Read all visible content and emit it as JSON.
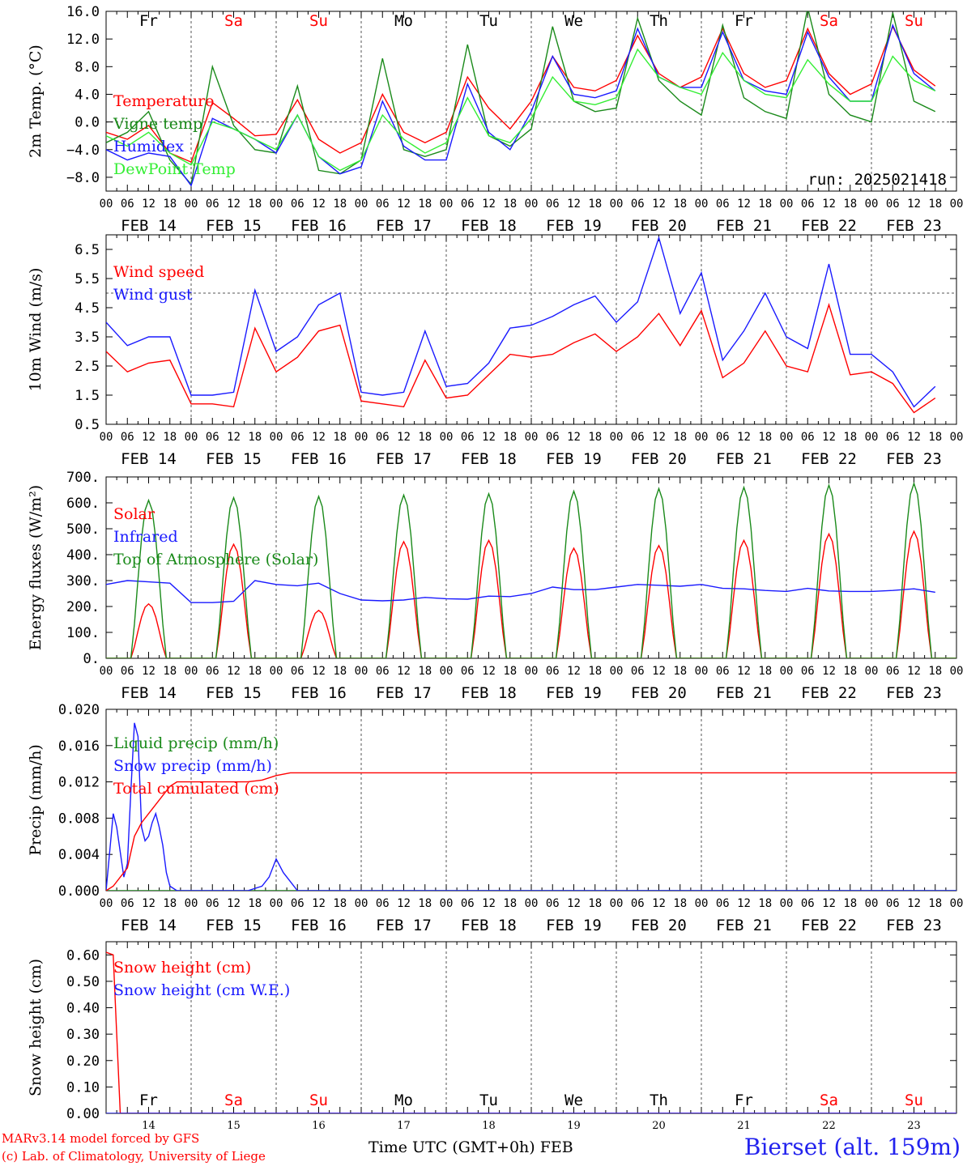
{
  "footer": {
    "model_credit": "MARv3.14 model forced by GFS",
    "lab_credit": "(c) Lab. of Climatology, University of Liege",
    "time_axis_label": "Time UTC (GMT+0h)",
    "month": "FEB",
    "station": "Bierset (alt. 159m)"
  },
  "colors": {
    "red": "#ff0000",
    "blue": "#1a1aff",
    "green": "#1a8a1a",
    "light_green": "#33ee33",
    "weekend": "#ff0000",
    "weekday": "#000000"
  },
  "days": {
    "weekday_names": [
      "Fr",
      "Sa",
      "Su",
      "Mo",
      "Tu",
      "We",
      "Th",
      "Fr",
      "Sa",
      "Su"
    ],
    "weekend_flags": [
      false,
      true,
      true,
      false,
      false,
      false,
      false,
      false,
      true,
      true
    ],
    "date_labels": [
      "FEB 14",
      "FEB 15",
      "FEB 16",
      "FEB 17",
      "FEB 18",
      "FEB 19",
      "FEB 20",
      "FEB 21",
      "FEB 22",
      "FEB 23"
    ],
    "day_numbers": [
      "14",
      "15",
      "16",
      "17",
      "18",
      "19",
      "20",
      "21",
      "22",
      "23"
    ],
    "hour_ticks": [
      "00",
      "06",
      "12",
      "18"
    ]
  },
  "chart_data": [
    {
      "id": "temp",
      "type": "line",
      "ylabel": "2m Temp. (°C)",
      "ylim": [
        -10,
        16
      ],
      "yticks": [
        -8.0,
        -4.0,
        0.0,
        4.0,
        8.0,
        12.0,
        16.0
      ],
      "ytick_labels": [
        "−8.0",
        "−4.0",
        "0.0",
        "4.0",
        "8.0",
        "12.0",
        "16.0"
      ],
      "ref_line": 0,
      "annotation": "run: 2025021418",
      "x_unit": "hours since FEB 14 00 UTC",
      "series": [
        {
          "name": "Temperature",
          "color": "red",
          "x": [
            0,
            6,
            12,
            18,
            24,
            30,
            36,
            42,
            48,
            54,
            60,
            66,
            72,
            78,
            84,
            90,
            96,
            102,
            108,
            114,
            120,
            126,
            132,
            138,
            144,
            150,
            156,
            162,
            168,
            174,
            180,
            186,
            192,
            198,
            204,
            210,
            216,
            222,
            228,
            234
          ],
          "values": [
            -1.5,
            -2.5,
            -0.5,
            -4.5,
            -5.8,
            2.8,
            0.5,
            -2.0,
            -1.8,
            3.2,
            -2.5,
            -4.5,
            -3.0,
            4.0,
            -1.5,
            -3.0,
            -1.5,
            6.5,
            2.0,
            -1.0,
            3.0,
            9.5,
            5.0,
            4.5,
            6.0,
            12.5,
            7.0,
            5.0,
            6.5,
            13.5,
            7.0,
            5.0,
            6.0,
            13.5,
            7.0,
            4.0,
            5.5,
            13.8,
            7.5,
            5.2
          ]
        },
        {
          "name": "Vigne temp",
          "color": "green",
          "x": [
            0,
            6,
            12,
            18,
            24,
            30,
            36,
            42,
            48,
            54,
            60,
            66,
            72,
            78,
            84,
            90,
            96,
            102,
            108,
            114,
            120,
            126,
            132,
            138,
            144,
            150,
            156,
            162,
            168,
            174,
            180,
            186,
            192,
            198,
            204,
            210,
            216,
            222,
            228,
            234
          ],
          "values": [
            -3.0,
            -1.5,
            1.5,
            -5.5,
            -9.0,
            8.0,
            -0.5,
            -4.0,
            -4.5,
            5.2,
            -7.0,
            -7.5,
            -5.5,
            9.2,
            -4.0,
            -5.0,
            -4.0,
            11.2,
            -2.0,
            -3.5,
            -1.0,
            13.8,
            3.0,
            1.5,
            2.0,
            15.0,
            6.0,
            3.0,
            1.0,
            14.0,
            3.5,
            1.5,
            0.5,
            16.5,
            4.0,
            1.0,
            0.0,
            15.8,
            3.0,
            1.5
          ]
        },
        {
          "name": "Humidex",
          "color": "blue",
          "x": [
            0,
            6,
            12,
            18,
            24,
            30,
            36,
            42,
            48,
            54,
            60,
            66,
            72,
            78,
            84,
            90,
            96,
            102,
            108,
            114,
            120,
            126,
            132,
            138,
            144,
            150,
            156,
            162,
            168,
            174,
            180,
            186,
            192,
            198,
            204,
            210,
            216,
            222,
            228,
            234
          ],
          "values": [
            -4.0,
            -5.5,
            -4.5,
            -5.0,
            -9.2,
            0.5,
            -1.0,
            -2.5,
            -4.5,
            1.0,
            -5.0,
            -7.5,
            -6.5,
            3.0,
            -3.5,
            -5.5,
            -5.5,
            5.5,
            -1.5,
            -4.0,
            1.5,
            9.5,
            4.0,
            3.5,
            4.5,
            13.5,
            6.5,
            5.0,
            5.0,
            13.0,
            6.0,
            4.5,
            4.0,
            13.0,
            6.5,
            3.0,
            3.0,
            14.0,
            7.0,
            4.5
          ]
        },
        {
          "name": "DewPoint Temp",
          "color": "light_green",
          "x": [
            0,
            6,
            12,
            18,
            24,
            30,
            36,
            42,
            48,
            54,
            60,
            66,
            72,
            78,
            84,
            90,
            96,
            102,
            108,
            114,
            120,
            126,
            132,
            138,
            144,
            150,
            156,
            162,
            168,
            174,
            180,
            186,
            192,
            198,
            204,
            210,
            216,
            222,
            228,
            234
          ],
          "values": [
            -2.0,
            -3.5,
            -1.5,
            -4.5,
            -6.2,
            0.0,
            -1.0,
            -2.5,
            -4.0,
            1.0,
            -5.0,
            -7.0,
            -5.5,
            1.0,
            -2.5,
            -4.5,
            -3.0,
            3.5,
            -2.0,
            -3.0,
            0.5,
            6.5,
            3.0,
            2.5,
            3.5,
            10.5,
            6.5,
            5.0,
            4.0,
            10.0,
            6.0,
            4.0,
            3.5,
            9.0,
            5.5,
            3.0,
            3.0,
            9.5,
            6.0,
            4.5
          ]
        }
      ]
    },
    {
      "id": "wind",
      "type": "line",
      "ylabel": "10m Wind (m/s)",
      "ylim": [
        0.5,
        7.0
      ],
      "yticks": [
        0.5,
        1.5,
        2.5,
        3.5,
        4.5,
        5.5,
        6.5
      ],
      "ytick_labels": [
        "0.5",
        "1.5",
        "2.5",
        "3.5",
        "4.5",
        "5.5",
        "6.5"
      ],
      "ref_line": 5.0,
      "x_unit": "hours since FEB 14 00 UTC",
      "series": [
        {
          "name": "Wind speed",
          "color": "red",
          "x": [
            0,
            6,
            12,
            18,
            24,
            30,
            36,
            42,
            48,
            54,
            60,
            66,
            72,
            78,
            84,
            90,
            96,
            102,
            108,
            114,
            120,
            126,
            132,
            138,
            144,
            150,
            156,
            162,
            168,
            174,
            180,
            186,
            192,
            198,
            204,
            210,
            216,
            222,
            228,
            234
          ],
          "values": [
            3.0,
            2.3,
            2.6,
            2.7,
            1.2,
            1.2,
            1.1,
            3.8,
            2.3,
            2.8,
            3.7,
            3.9,
            1.3,
            1.2,
            1.1,
            2.7,
            1.4,
            1.5,
            2.2,
            2.9,
            2.8,
            2.9,
            3.3,
            3.6,
            3.0,
            3.5,
            4.3,
            3.2,
            4.4,
            2.1,
            2.6,
            3.7,
            2.5,
            2.3,
            4.6,
            2.2,
            2.3,
            1.9,
            0.9,
            1.4
          ]
        },
        {
          "name": "Wind gust",
          "color": "blue",
          "x": [
            0,
            6,
            12,
            18,
            24,
            30,
            36,
            42,
            48,
            54,
            60,
            66,
            72,
            78,
            84,
            90,
            96,
            102,
            108,
            114,
            120,
            126,
            132,
            138,
            144,
            150,
            156,
            162,
            168,
            174,
            180,
            186,
            192,
            198,
            204,
            210,
            216,
            222,
            228,
            234
          ],
          "values": [
            4.0,
            3.2,
            3.5,
            3.5,
            1.5,
            1.5,
            1.6,
            5.1,
            3.0,
            3.5,
            4.6,
            5.0,
            1.6,
            1.5,
            1.6,
            3.7,
            1.8,
            1.9,
            2.6,
            3.8,
            3.9,
            4.2,
            4.6,
            4.9,
            4.0,
            4.7,
            6.9,
            4.3,
            5.7,
            2.7,
            3.7,
            5.0,
            3.5,
            3.1,
            6.0,
            2.9,
            2.9,
            2.3,
            1.1,
            1.8
          ]
        }
      ]
    },
    {
      "id": "energy",
      "type": "line",
      "ylabel": "Energy fluxes (W/m²)",
      "ylim": [
        0,
        700
      ],
      "yticks": [
        0,
        100,
        200,
        300,
        400,
        500,
        600,
        700
      ],
      "ytick_labels": [
        "0.",
        "100.",
        "200.",
        "300.",
        "400.",
        "500.",
        "600.",
        "700."
      ],
      "x_unit": "hours since FEB 14 00 UTC",
      "series": [
        {
          "name": "Solar",
          "color": "red",
          "daily_peaks": [
            210,
            440,
            185,
            450,
            455,
            425,
            435,
            455,
            480,
            490
          ],
          "x": [
            0,
            6,
            12,
            18,
            24,
            30,
            36,
            42,
            48,
            54,
            60,
            66,
            72,
            78,
            84,
            90,
            96,
            102,
            108,
            114,
            120,
            126,
            132,
            138,
            144,
            150,
            156,
            162,
            168,
            174,
            180,
            186,
            192,
            198,
            204,
            210,
            216,
            222,
            228,
            234
          ],
          "values": [
            0,
            0,
            210,
            0,
            0,
            0,
            440,
            0,
            0,
            0,
            185,
            0,
            0,
            0,
            450,
            0,
            0,
            0,
            455,
            0,
            0,
            0,
            425,
            0,
            0,
            0,
            435,
            0,
            0,
            0,
            455,
            0,
            0,
            0,
            480,
            0,
            0,
            0,
            490,
            0
          ]
        },
        {
          "name": "Infrared",
          "color": "blue",
          "x": [
            0,
            6,
            12,
            18,
            24,
            30,
            36,
            42,
            48,
            54,
            60,
            66,
            72,
            78,
            84,
            90,
            96,
            102,
            108,
            114,
            120,
            126,
            132,
            138,
            144,
            150,
            156,
            162,
            168,
            174,
            180,
            186,
            192,
            198,
            204,
            210,
            216,
            222,
            228,
            234
          ],
          "values": [
            285,
            300,
            295,
            290,
            215,
            215,
            220,
            300,
            285,
            280,
            290,
            250,
            225,
            222,
            225,
            235,
            230,
            228,
            240,
            238,
            250,
            275,
            265,
            265,
            275,
            285,
            282,
            278,
            285,
            270,
            268,
            262,
            258,
            270,
            260,
            258,
            258,
            262,
            268,
            255
          ]
        },
        {
          "name": "Top of Atmosphere (Solar)",
          "color": "green",
          "daily_peaks": [
            610,
            620,
            625,
            630,
            635,
            645,
            655,
            660,
            668,
            675
          ],
          "x": [
            0,
            6,
            12,
            18,
            24,
            30,
            36,
            42,
            48,
            54,
            60,
            66,
            72,
            78,
            84,
            90,
            96,
            102,
            108,
            114,
            120,
            126,
            132,
            138,
            144,
            150,
            156,
            162,
            168,
            174,
            180,
            186,
            192,
            198,
            204,
            210,
            216,
            222,
            228,
            234
          ],
          "values": [
            0,
            0,
            610,
            0,
            0,
            0,
            620,
            0,
            0,
            0,
            625,
            0,
            0,
            0,
            630,
            0,
            0,
            0,
            635,
            0,
            0,
            0,
            645,
            0,
            0,
            0,
            655,
            0,
            0,
            0,
            660,
            0,
            0,
            0,
            668,
            0,
            0,
            0,
            675,
            0
          ]
        }
      ]
    },
    {
      "id": "precip",
      "type": "line",
      "ylabel": "Precip (mm/h)",
      "ylim": [
        0,
        0.02
      ],
      "yticks": [
        0.0,
        0.004,
        0.008,
        0.012,
        0.016,
        0.02
      ],
      "ytick_labels": [
        "0.000",
        "0.004",
        "0.008",
        "0.012",
        "0.016",
        "0.020"
      ],
      "x_unit": "hours since FEB 14 00 UTC",
      "series": [
        {
          "name": "Liquid precip (mm/h)",
          "color": "green",
          "x": [
            0,
            240
          ],
          "values": [
            0,
            0
          ]
        },
        {
          "name": "Snow precip (mm/h)",
          "color": "blue",
          "x": [
            0,
            2,
            3,
            5,
            6,
            7,
            8,
            9,
            10,
            11,
            12,
            13,
            14,
            15,
            16,
            17,
            18,
            20,
            24,
            40,
            44,
            46,
            48,
            50,
            54,
            240
          ],
          "values": [
            0,
            0.0085,
            0.007,
            0.0015,
            0.003,
            0.011,
            0.0185,
            0.017,
            0.007,
            0.0055,
            0.006,
            0.0075,
            0.0085,
            0.007,
            0.005,
            0.002,
            0.0005,
            0,
            0,
            0,
            0.0005,
            0.0015,
            0.0035,
            0.002,
            0,
            0
          ]
        },
        {
          "name": "Total cumulated (cm)",
          "color": "red",
          "x": [
            0,
            2,
            4,
            6,
            8,
            10,
            12,
            14,
            16,
            18,
            20,
            24,
            40,
            44,
            48,
            52,
            56,
            240
          ],
          "values": [
            0,
            0.0005,
            0.0015,
            0.0025,
            0.006,
            0.0075,
            0.0085,
            0.0095,
            0.0105,
            0.0115,
            0.012,
            0.012,
            0.012,
            0.0122,
            0.0127,
            0.013,
            0.013,
            0.013
          ]
        }
      ]
    },
    {
      "id": "snow",
      "type": "line",
      "ylabel": "Snow height (cm)",
      "ylim": [
        0,
        0.65
      ],
      "yticks": [
        0.0,
        0.1,
        0.2,
        0.3,
        0.4,
        0.5,
        0.6
      ],
      "ytick_labels": [
        "0.00",
        "0.10",
        "0.20",
        "0.30",
        "0.40",
        "0.50",
        "0.60"
      ],
      "x_unit": "hours since FEB 14 00 UTC",
      "series": [
        {
          "name": "Snow height (cm)",
          "color": "red",
          "x": [
            0,
            2,
            3,
            4,
            240
          ],
          "values": [
            0.61,
            0.6,
            0.3,
            0,
            0
          ]
        },
        {
          "name": "Snow height (cm W.E.)",
          "color": "blue",
          "x": [
            0,
            240
          ],
          "values": [
            0,
            0
          ]
        }
      ]
    }
  ]
}
